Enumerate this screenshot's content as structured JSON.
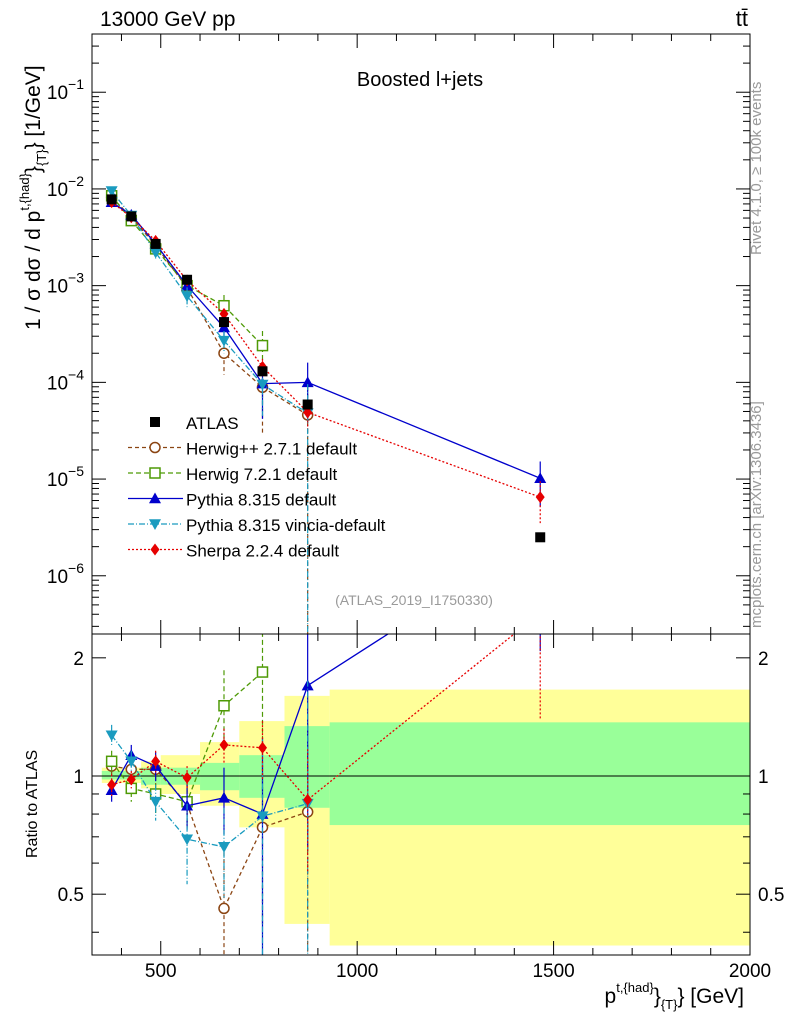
{
  "header": {
    "left": "13000 GeV pp",
    "right": "tt̄"
  },
  "side": {
    "rivet": "Rivet 4.1.0, ≥ 100k events",
    "mcplots": "mcplots.cern.ch [arXiv:1306.3436]"
  },
  "chart_data": {
    "type": "scatter",
    "title": "Boosted l+jets",
    "analysis_label": "(ATLAS_2019_I1750330)",
    "xlabel": "p^{t,{had}}_{T} [GeV]",
    "xlabel_parts": {
      "main": "p",
      "sup": "t,{had}",
      "mid": "}",
      "sub": "{T}",
      "unit": "} [GeV]"
    },
    "ylabel": "1 / σ dσ / d p^{t,{had}}_{T} [1/GeV]",
    "ylabel_parts": {
      "main": "1 / σ dσ / d p",
      "sup": "t,{had}",
      "sub": "{T}",
      "unit": "} [1/GeV]"
    },
    "ratio_ylabel": "Ratio to ATLAS",
    "xlim": [
      325,
      2000
    ],
    "ylim": [
      2.5e-07,
      0.4
    ],
    "ratio_ylim": [
      0.35,
      2.3
    ],
    "x_ticks": [
      500,
      1000,
      1500,
      2000
    ],
    "x_tick_labels": [
      "500",
      "1000",
      "1500",
      "2000"
    ],
    "y_ticks": [
      1e-06,
      1e-05,
      0.0001,
      0.001,
      0.01,
      0.1
    ],
    "y_tick_labels": [
      {
        "base": "10",
        "exp": "−6"
      },
      {
        "base": "10",
        "exp": "−5"
      },
      {
        "base": "10",
        "exp": "−4"
      },
      {
        "base": "10",
        "exp": "−3"
      },
      {
        "base": "10",
        "exp": "−2"
      },
      {
        "base": "10",
        "exp": "−1"
      }
    ],
    "ratio_ticks": [
      0.5,
      1,
      2
    ],
    "ratio_tick_labels": [
      "0.5",
      "1",
      "2"
    ],
    "bin_edges": [
      350,
      400,
      450,
      500,
      600,
      700,
      815,
      930,
      2000
    ],
    "x": [
      375,
      425,
      487,
      567,
      661,
      759,
      874,
      1466
    ],
    "data": {
      "name": "ATLAS",
      "y": [
        0.0078,
        0.0052,
        0.0027,
        0.00115,
        0.00042,
        0.00013,
        5.9e-05,
        2.5e-06
      ],
      "band_outer": [
        [
          0.96,
          1.05
        ],
        [
          0.96,
          1.05
        ],
        [
          0.93,
          1.09
        ],
        [
          0.9,
          1.13
        ],
        [
          0.84,
          1.22
        ],
        [
          0.74,
          1.38
        ],
        [
          0.42,
          1.6
        ],
        [
          0.37,
          1.66
        ]
      ],
      "band_inner": [
        [
          0.98,
          1.03
        ],
        [
          0.98,
          1.03
        ],
        [
          0.95,
          1.05
        ],
        [
          0.95,
          1.05
        ],
        [
          0.92,
          1.08
        ],
        [
          0.88,
          1.13
        ],
        [
          0.83,
          1.34
        ],
        [
          0.75,
          1.37
        ]
      ]
    },
    "series": [
      {
        "name": "Herwig++ 2.7.1 default",
        "color": "#8b4513",
        "marker": "circle-open",
        "dash": "4,3",
        "x": [
          375,
          425,
          487,
          567,
          661,
          759,
          874
        ],
        "y": [
          0.0082,
          0.0051,
          0.0026,
          0.00095,
          0.0002,
          8.9e-05,
          4.6e-05
        ],
        "ratio": [
          1.06,
          1.04,
          1.04,
          0.85,
          0.46,
          0.74,
          0.81
        ],
        "y_err": [
          0.0008,
          0.0004,
          0.0003,
          0.00012,
          8e-05,
          6e-05,
          6e-05
        ],
        "ratio_err": [
          0.06,
          0.06,
          0.09,
          0.11,
          0.18,
          0.32,
          0.55
        ]
      },
      {
        "name": "Herwig 7.2.1 default",
        "color": "#4e9a06",
        "marker": "square-open",
        "dash": "5,3",
        "x": [
          375,
          425,
          487,
          567,
          661,
          759
        ],
        "y": [
          0.0085,
          0.0047,
          0.0024,
          0.001,
          0.00062,
          0.00024
        ],
        "ratio": [
          1.09,
          0.93,
          0.9,
          0.86,
          1.51,
          1.84
        ],
        "y_err": [
          0.0008,
          0.0004,
          0.0003,
          0.00012,
          0.00018,
          0.0001
        ],
        "ratio_err": [
          0.07,
          0.07,
          0.1,
          0.12,
          0.35,
          0.6
        ]
      },
      {
        "name": "Pythia 8.315 default",
        "color": "#0000cc",
        "marker": "triangle-up",
        "dash": "",
        "x": [
          375,
          425,
          487,
          567,
          661,
          759,
          874,
          1466
        ],
        "y": [
          0.0073,
          0.0054,
          0.0027,
          0.001,
          0.00037,
          9.7e-05,
          0.0001,
          1.02e-05
        ],
        "ratio": [
          0.92,
          1.13,
          1.06,
          0.84,
          0.88,
          0.8,
          1.7,
          4.08
        ],
        "y_err": [
          0.0007,
          0.0004,
          0.0003,
          0.00012,
          8e-05,
          5.5e-05,
          6e-05,
          5e-06
        ],
        "ratio_err": [
          0.06,
          0.07,
          0.09,
          0.11,
          0.17,
          0.45,
          1.05,
          2.0
        ]
      },
      {
        "name": "Pythia 8.315 vincia-default",
        "color": "#1a9bbf",
        "marker": "triangle-down",
        "dash": "6,2,1,2",
        "x": [
          375,
          425,
          487,
          567,
          661,
          759,
          874
        ],
        "y": [
          0.0095,
          0.0053,
          0.0022,
          0.00078,
          0.00027,
          9.5e-05,
          4.8e-05
        ],
        "ratio": [
          1.27,
          1.09,
          0.86,
          0.69,
          0.66,
          0.79,
          0.85
        ],
        "y_err": [
          0.0009,
          0.0004,
          0.0003,
          0.00018,
          7e-05,
          5e-05,
          4.8e-05
        ],
        "ratio_err": [
          0.08,
          0.07,
          0.09,
          0.16,
          0.17,
          0.45,
          0.9
        ]
      },
      {
        "name": "Sherpa 2.2.4 default",
        "color": "#e60000",
        "marker": "diamond",
        "dash": "2,2",
        "x": [
          375,
          425,
          487,
          567,
          661,
          759,
          874,
          1466
        ],
        "y": [
          0.0073,
          0.0051,
          0.0029,
          0.00113,
          0.00051,
          0.000145,
          4.9e-05,
          6.5e-06
        ],
        "ratio": [
          0.95,
          0.98,
          1.09,
          0.99,
          1.2,
          1.18,
          0.87,
          2.6
        ],
        "y_err": [
          0.0005,
          0.0003,
          0.0002,
          8e-05,
          6e-05,
          3e-05,
          1.6e-05,
          3e-06
        ],
        "ratio_err": [
          0.06,
          0.05,
          0.07,
          0.07,
          0.12,
          0.2,
          0.3,
          1.2
        ]
      }
    ]
  }
}
